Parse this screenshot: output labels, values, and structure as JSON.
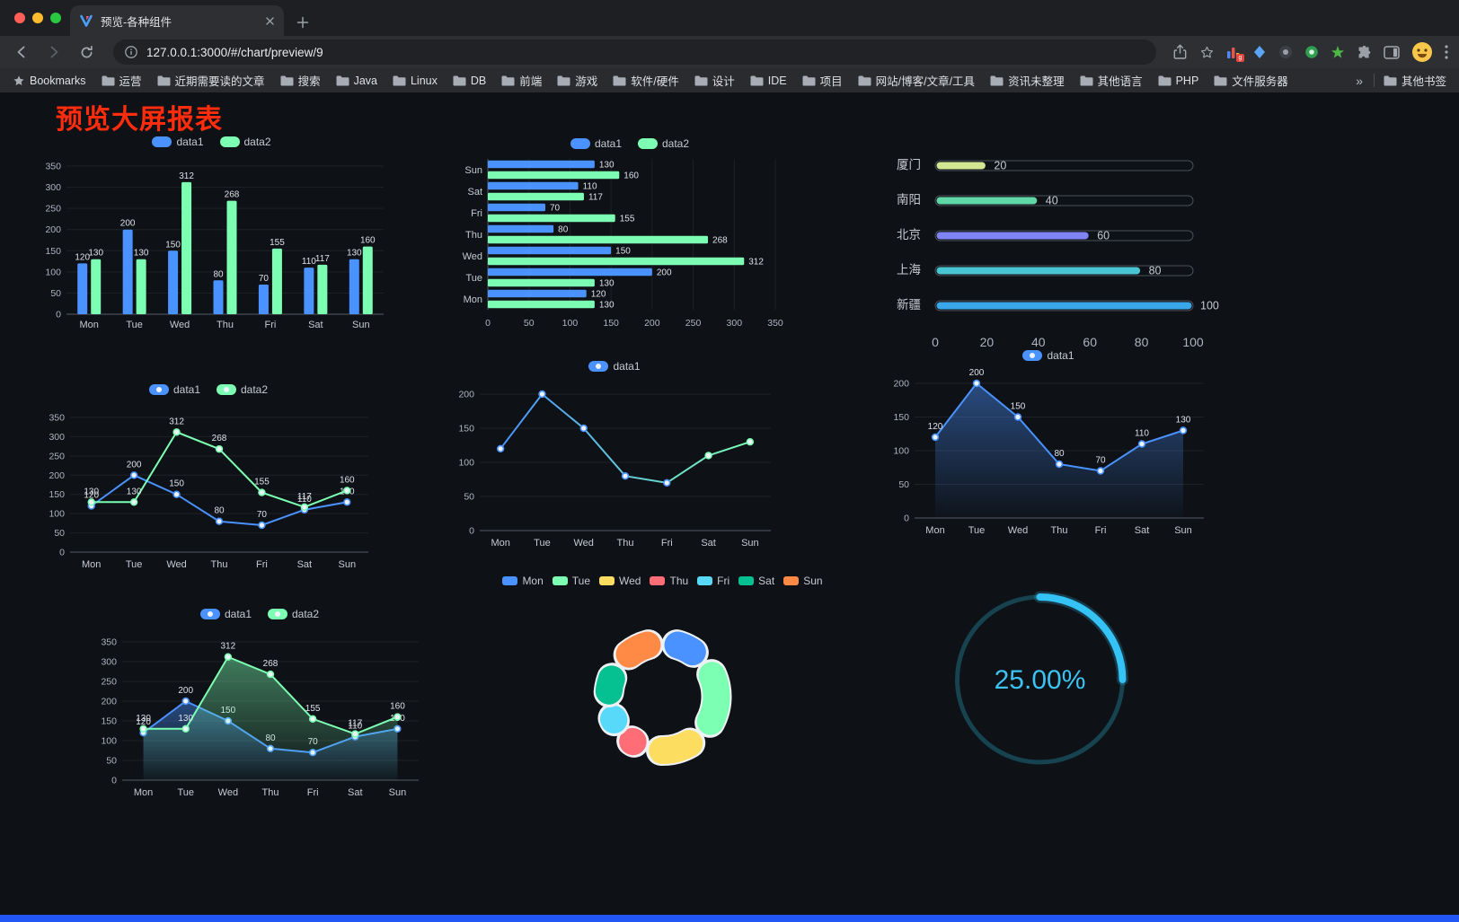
{
  "browser": {
    "tab": {
      "title": "预览-各种组件"
    },
    "address": {
      "url": "127.0.0.1:3000/#/chart/preview/9"
    },
    "bookmarks_bar": {
      "first": "Bookmarks",
      "folders": [
        "运营",
        "近期需要读的文章",
        "搜索",
        "Java",
        "Linux",
        "DB",
        "前端",
        "游戏",
        "软件/硬件",
        "设计",
        "IDE",
        "项目",
        "网站/博客/文章/工具",
        "资讯未整理",
        "其他语言",
        "PHP",
        "文件服务器"
      ],
      "overflow": "»",
      "other": "其他书签"
    }
  },
  "page": {
    "title": "预览大屏报表",
    "title_color": "#ff2d0d",
    "footer_color": "#2257f5",
    "background": "#0e1116"
  },
  "chart_data": [
    {
      "type": "bar",
      "categories": [
        "Mon",
        "Tue",
        "Wed",
        "Thu",
        "Fri",
        "Sat",
        "Sun"
      ],
      "series": [
        {
          "name": "data1",
          "color": "#4992ff",
          "values": [
            120,
            200,
            150,
            80,
            70,
            110,
            130
          ],
          "labels": true
        },
        {
          "name": "data2",
          "color": "#7cffb2",
          "values": [
            130,
            130,
            312,
            268,
            155,
            117,
            160
          ],
          "labels": true
        }
      ],
      "ylim": [
        0,
        350
      ],
      "ytick": 50,
      "legend": true
    },
    {
      "type": "hbar",
      "categories": [
        "Mon",
        "Tue",
        "Wed",
        "Thu",
        "Fri",
        "Sat",
        "Sun"
      ],
      "series": [
        {
          "name": "data1",
          "color": "#4992ff",
          "values": [
            120,
            200,
            150,
            80,
            70,
            110,
            130
          ],
          "labels": true
        },
        {
          "name": "data2",
          "color": "#7cffb2",
          "values": [
            130,
            130,
            312,
            268,
            155,
            117,
            160
          ],
          "labels": true
        }
      ],
      "xlim": [
        0,
        350
      ],
      "xtick": 50,
      "legend": true
    },
    {
      "type": "progress",
      "items": [
        {
          "label": "厦门",
          "value": 20,
          "color": "#d2e693"
        },
        {
          "label": "南阳",
          "value": 40,
          "color": "#5fd8a6"
        },
        {
          "label": "北京",
          "value": 60,
          "color": "#7f84f5"
        },
        {
          "label": "上海",
          "value": 80,
          "color": "#49c5d4"
        },
        {
          "label": "新疆",
          "value": 100,
          "color": "#39a7ea"
        }
      ],
      "axis_ticks": [
        0,
        20,
        40,
        60,
        80,
        100
      ]
    },
    {
      "type": "line",
      "categories": [
        "Mon",
        "Tue",
        "Wed",
        "Thu",
        "Fri",
        "Sat",
        "Sun"
      ],
      "series": [
        {
          "name": "data1",
          "color": "#4992ff",
          "values": [
            120,
            200,
            150,
            80,
            70,
            110,
            130
          ],
          "labels": true
        },
        {
          "name": "data2",
          "color": "#7cffb2",
          "values": [
            130,
            130,
            312,
            268,
            155,
            117,
            160
          ],
          "labels": true
        }
      ],
      "ylim": [
        0,
        350
      ],
      "ytick": 50,
      "legend": true
    },
    {
      "type": "line",
      "categories": [
        "Mon",
        "Tue",
        "Wed",
        "Thu",
        "Fri",
        "Sat",
        "Sun"
      ],
      "series": [
        {
          "name": "data1",
          "color": "#4992ff",
          "color2": "#7cffb2",
          "values": [
            120,
            200,
            150,
            80,
            70,
            110,
            130
          ],
          "labels": false
        }
      ],
      "ylim": [
        0,
        200
      ],
      "ytick": 50,
      "legend": true
    },
    {
      "type": "line",
      "categories": [
        "Mon",
        "Tue",
        "Wed",
        "Thu",
        "Fri",
        "Sat",
        "Sun"
      ],
      "series": [
        {
          "name": "data1",
          "color": "#4992ff",
          "values": [
            120,
            200,
            150,
            80,
            70,
            110,
            130
          ],
          "labels": true,
          "area": true
        }
      ],
      "ylim": [
        0,
        200
      ],
      "ytick": 50,
      "legend": true
    },
    {
      "type": "line",
      "categories": [
        "Mon",
        "Tue",
        "Wed",
        "Thu",
        "Fri",
        "Sat",
        "Sun"
      ],
      "series": [
        {
          "name": "data1",
          "color": "#4992ff",
          "values": [
            120,
            200,
            150,
            80,
            70,
            110,
            130
          ],
          "labels": true,
          "area": true
        },
        {
          "name": "data2",
          "color": "#7cffb2",
          "values": [
            130,
            130,
            312,
            268,
            155,
            117,
            160
          ],
          "labels": true,
          "area": true
        }
      ],
      "ylim": [
        0,
        350
      ],
      "ytick": 50,
      "legend": true
    },
    {
      "type": "pie",
      "items": [
        {
          "label": "Mon",
          "value": 120,
          "color": "#4992ff"
        },
        {
          "label": "Tue",
          "value": 200,
          "color": "#7cffb2"
        },
        {
          "label": "Wed",
          "value": 150,
          "color": "#fddd60"
        },
        {
          "label": "Thu",
          "value": 80,
          "color": "#ff6e76"
        },
        {
          "label": "Fri",
          "value": 70,
          "color": "#58d9f9"
        },
        {
          "label": "Sat",
          "value": 110,
          "color": "#05c091"
        },
        {
          "label": "Sun",
          "value": 130,
          "color": "#ff8a45"
        }
      ],
      "legend": true
    },
    {
      "type": "gauge",
      "value": 25,
      "label": "25.00%",
      "color": "#35c2f5"
    }
  ]
}
